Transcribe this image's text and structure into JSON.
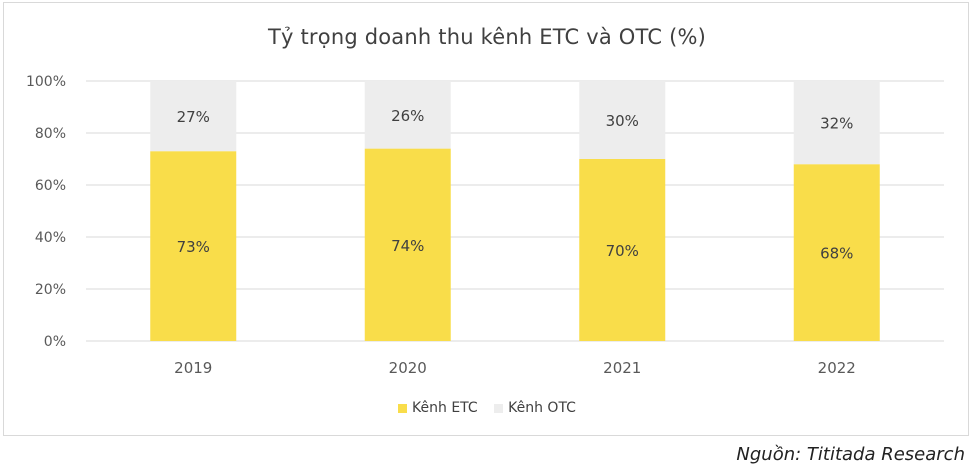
{
  "chart_data": {
    "type": "bar",
    "stacked": true,
    "title": "Tỷ trọng doanh thu kênh ETC và OTC (%)",
    "categories": [
      "2019",
      "2020",
      "2021",
      "2022"
    ],
    "series": [
      {
        "name": "Kênh ETC",
        "values": [
          73,
          74,
          70,
          68
        ],
        "labels": [
          "73%",
          "74%",
          "70%",
          "68%"
        ],
        "color": "#F9DD4A"
      },
      {
        "name": "Kênh OTC",
        "values": [
          27,
          26,
          30,
          32
        ],
        "labels": [
          "27%",
          "26%",
          "30%",
          "32%"
        ],
        "color": "#EDEDED"
      }
    ],
    "ylim": [
      0,
      100
    ],
    "yticks": [
      "0%",
      "20%",
      "40%",
      "60%",
      "80%",
      "100%"
    ],
    "grid": true,
    "legend_position": "bottom"
  },
  "source": "Nguồn: Tititada Research"
}
